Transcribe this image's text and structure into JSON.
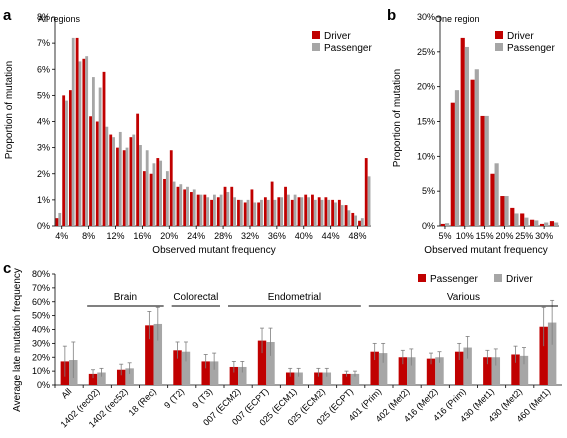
{
  "colors": {
    "driver": "#c00000",
    "passenger": "#a6a6a6",
    "axis": "#000000",
    "error": "#7f7f7f"
  },
  "chart_data": [
    {
      "panel": "a",
      "type": "bar",
      "title": "All regions",
      "xlabel": "Observed mutant frequency",
      "ylabel": "Proportion of mutation",
      "ylim": [
        0,
        8
      ],
      "y_unit": "%",
      "y_ticks": [
        "0%",
        "1%",
        "2%",
        "3%",
        "4%",
        "5%",
        "6%",
        "7%",
        "8%"
      ],
      "x_tick_labels": [
        "4%",
        "8%",
        "12%",
        "16%",
        "20%",
        "24%",
        "28%",
        "32%",
        "36%",
        "40%",
        "44%",
        "48%"
      ],
      "legend": {
        "position": "top-right",
        "entries": [
          "Driver",
          "Passenger"
        ]
      },
      "grid": false,
      "series": [
        {
          "name": "Driver",
          "values": [
            0.3,
            5.0,
            5.2,
            7.2,
            6.4,
            4.2,
            4.0,
            5.9,
            3.5,
            3.0,
            2.9,
            3.4,
            4.3,
            2.1,
            2.0,
            2.6,
            1.8,
            2.9,
            1.5,
            1.4,
            1.3,
            1.2,
            1.2,
            1.0,
            1.1,
            1.5,
            1.5,
            1.0,
            0.9,
            1.4,
            0.9,
            1.1,
            1.7,
            1.1,
            1.5,
            1.0,
            1.1,
            1.2,
            1.2,
            1.1,
            1.1,
            1.0,
            1.0,
            0.8,
            0.5,
            0.2,
            2.6
          ]
        },
        {
          "name": "Passenger",
          "values": [
            0.5,
            4.8,
            7.2,
            6.3,
            6.5,
            5.7,
            5.3,
            3.8,
            3.4,
            3.6,
            3.0,
            3.5,
            3.1,
            2.9,
            2.4,
            2.5,
            2.1,
            1.7,
            1.6,
            1.5,
            1.4,
            1.2,
            1.1,
            1.2,
            1.2,
            1.3,
            1.1,
            1.0,
            1.0,
            0.9,
            1.0,
            1.0,
            1.0,
            1.1,
            1.2,
            1.2,
            1.1,
            1.1,
            1.0,
            1.0,
            1.0,
            0.9,
            0.8,
            0.6,
            0.4,
            0.3,
            1.9
          ]
        }
      ]
    },
    {
      "panel": "b",
      "type": "bar",
      "title": "One region",
      "xlabel": "Observed mutant frequency",
      "ylabel": "Proportion of mutation",
      "ylim": [
        0,
        30
      ],
      "y_unit": "%",
      "y_ticks": [
        "0%",
        "5%",
        "10%",
        "15%",
        "20%",
        "25%",
        "30%"
      ],
      "x_tick_labels": [
        "5%",
        "10%",
        "15%",
        "20%",
        "25%",
        "30%"
      ],
      "legend": {
        "position": "top-right",
        "entries": [
          "Driver",
          "Passenger"
        ]
      },
      "grid": false,
      "series": [
        {
          "name": "Driver",
          "values": [
            0.3,
            17.7,
            27.0,
            21.0,
            15.8,
            7.5,
            4.3,
            2.6,
            1.8,
            0.9,
            0.3,
            0.7
          ]
        },
        {
          "name": "Passenger",
          "values": [
            0.4,
            19.5,
            25.7,
            22.5,
            15.8,
            9.0,
            4.3,
            1.8,
            1.2,
            0.8,
            0.5,
            0.5
          ]
        }
      ]
    },
    {
      "panel": "c",
      "type": "bar",
      "xlabel": "",
      "ylabel": "Average late mutation frequency",
      "ylim": [
        0,
        80
      ],
      "y_unit": "%",
      "y_ticks": [
        "0%",
        "10%",
        "20%",
        "30%",
        "40%",
        "50%",
        "60%",
        "70%",
        "80%"
      ],
      "legend": {
        "position": "top-right",
        "entries": [
          "Passenger",
          "Driver"
        ]
      },
      "grid": false,
      "categories": [
        "All",
        "1402 (rec02)",
        "1402 (rec52)",
        "18 (Rec)",
        "9 (T2)",
        "9 (T3)",
        "007 (ECM2)",
        "007 (ECPT)",
        "025 (ECM1)",
        "025 (ECM2)",
        "025 (ECPT)",
        "401 (Prim)",
        "402 (Met2)",
        "416 (Met2)",
        "416 (Prim)",
        "430 (Met1)",
        "430 (Met2)",
        "460 (Met1)"
      ],
      "groups": [
        {
          "label": "Brain",
          "from": 1,
          "to": 3
        },
        {
          "label": "Colorectal",
          "from": 4,
          "to": 5
        },
        {
          "label": "Endometrial",
          "from": 6,
          "to": 10
        },
        {
          "label": "Various",
          "from": 11,
          "to": 17
        }
      ],
      "series": [
        {
          "name": "Passenger",
          "values": [
            17,
            8,
            11,
            43,
            25,
            17,
            13,
            32,
            9,
            9,
            8,
            24,
            20,
            19,
            24,
            20,
            22,
            42
          ],
          "error": [
            11,
            3,
            4,
            10,
            6,
            5,
            4,
            9,
            3,
            3,
            2,
            6,
            5,
            4,
            6,
            5,
            6,
            14
          ]
        },
        {
          "name": "Driver",
          "values": [
            18,
            9,
            12,
            44,
            24,
            17,
            13,
            31,
            9,
            9,
            8,
            23,
            20,
            20,
            27,
            20,
            21,
            45
          ],
          "error": [
            13,
            3,
            4,
            12,
            7,
            6,
            4,
            10,
            3,
            3,
            2,
            7,
            6,
            4,
            8,
            6,
            6,
            16
          ]
        }
      ]
    }
  ]
}
